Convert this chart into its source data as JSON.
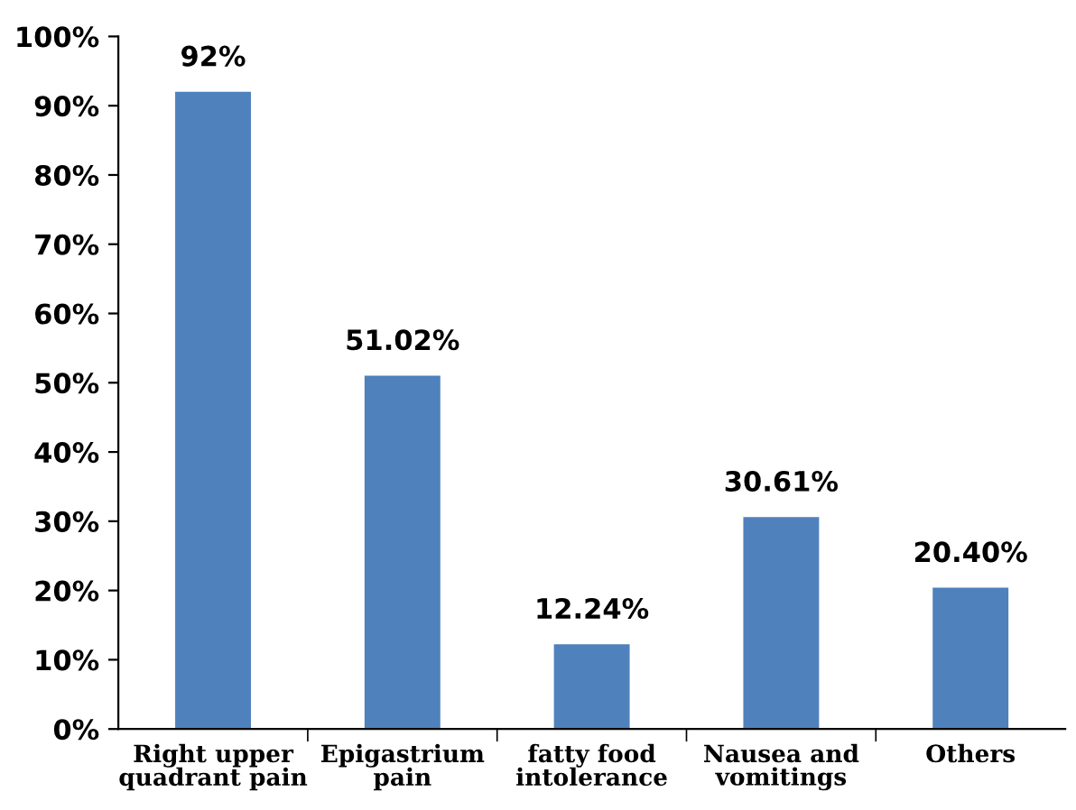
{
  "chart_data": {
    "type": "bar",
    "categories": [
      "Right upper\nquadrant pain",
      "Epigastrium\npain",
      "fatty food\nintolerance",
      "Nausea and\nvomitings",
      "Others"
    ],
    "values": [
      92,
      51.02,
      12.24,
      30.61,
      20.4
    ],
    "value_labels": [
      "92%",
      "51.02%",
      "12.24%",
      "30.61%",
      "20.40%"
    ],
    "color": "#4f81bd",
    "ylim": [
      0,
      100
    ],
    "yticks": [
      {
        "value": 0,
        "label": "0%"
      },
      {
        "value": 10,
        "label": "10%"
      },
      {
        "value": 20,
        "label": "20%"
      },
      {
        "value": 30,
        "label": "30%"
      },
      {
        "value": 40,
        "label": "40%"
      },
      {
        "value": 50,
        "label": "50%"
      },
      {
        "value": 60,
        "label": "60%"
      },
      {
        "value": 70,
        "label": "70%"
      },
      {
        "value": 80,
        "label": "80%"
      },
      {
        "value": 90,
        "label": "90%"
      },
      {
        "value": 100,
        "label": "100%"
      }
    ],
    "grid": false,
    "legend": false
  }
}
